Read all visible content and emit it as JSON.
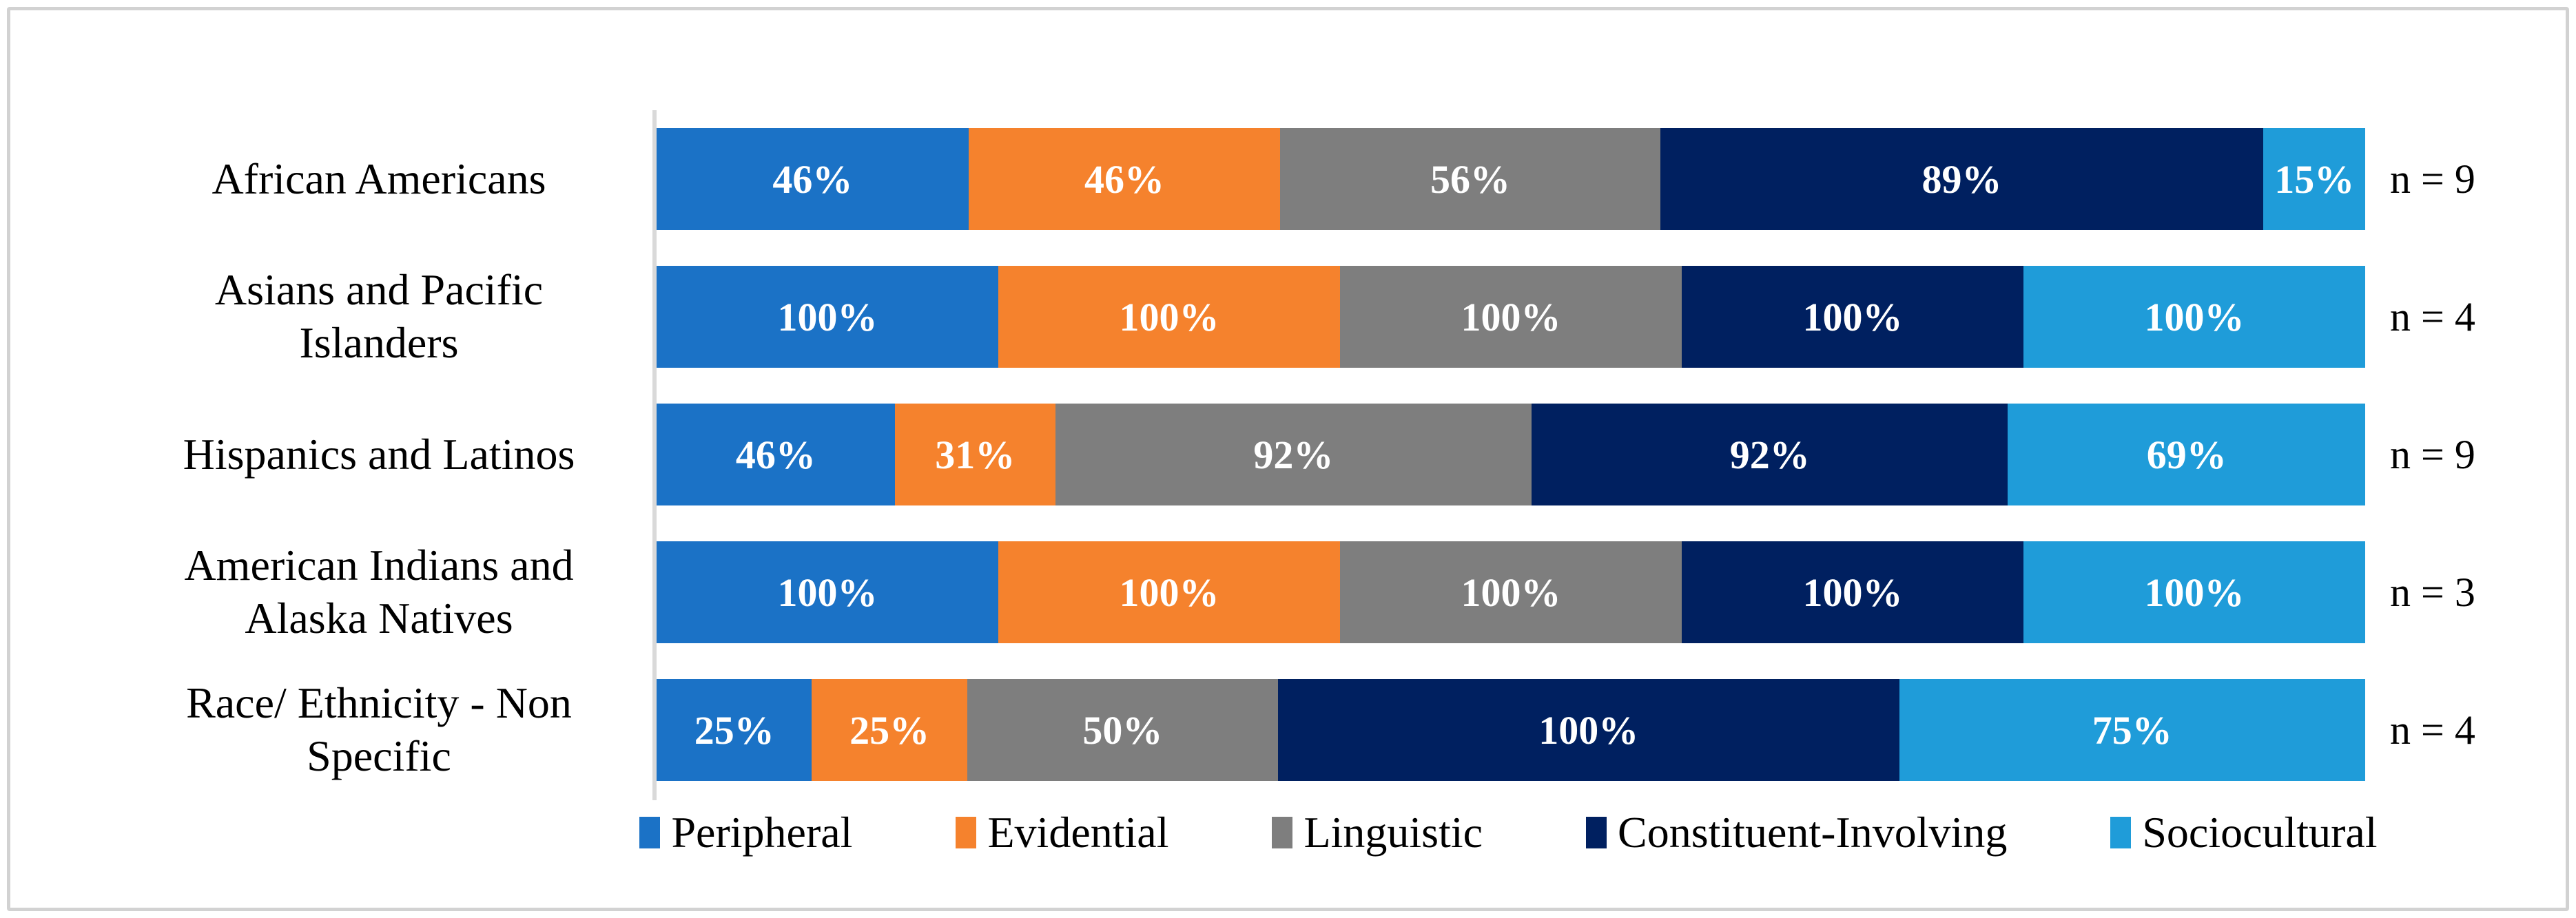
{
  "chart_data": {
    "type": "bar",
    "subtype": "horizontal-100pct-stacked",
    "title": "",
    "categories": [
      "African Americans",
      "Asians and Pacific Islanders",
      "Hispanics and Latinos",
      "American Indians and Alaska Natives",
      "Race/ Ethnicity - Non Specific"
    ],
    "n_labels": [
      "n = 9",
      "n = 4",
      "n = 9",
      "n = 3",
      "n = 4"
    ],
    "series": [
      {
        "name": "Peripheral",
        "color": "#1B72C6",
        "values": [
          46,
          100,
          46,
          100,
          25
        ]
      },
      {
        "name": "Evidential",
        "color": "#F5822D",
        "values": [
          46,
          100,
          31,
          100,
          25
        ]
      },
      {
        "name": "Linguistic",
        "color": "#7E7E7E",
        "values": [
          56,
          100,
          92,
          100,
          50
        ]
      },
      {
        "name": "Constituent-Involving",
        "color": "#002060",
        "values": [
          89,
          100,
          92,
          100,
          100
        ]
      },
      {
        "name": "Sociocultural",
        "color": "#1F9CD9",
        "values": [
          15,
          100,
          69,
          100,
          75
        ]
      }
    ],
    "value_suffix": "%",
    "data_label_color": "#FFFFFF",
    "legend_position": "bottom",
    "axis_color": "#D9D9D9",
    "frame_color": "#D2D2D2",
    "grid": false
  }
}
